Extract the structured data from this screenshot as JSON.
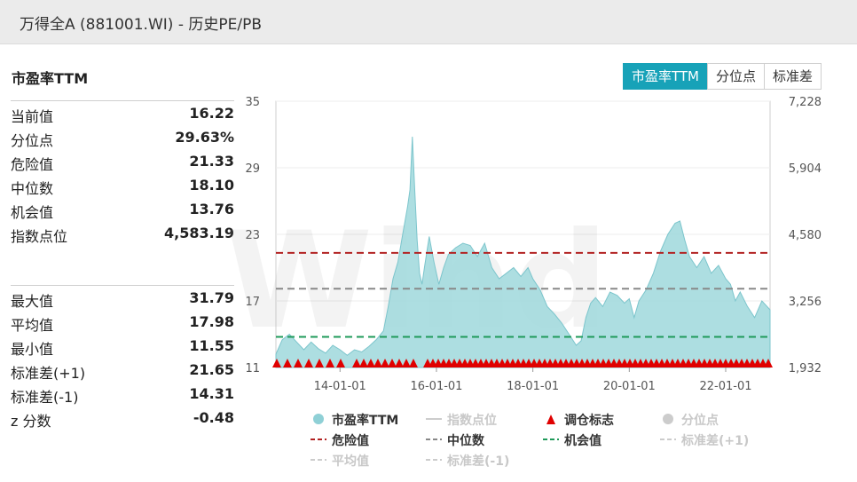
{
  "window": {
    "title": "万得全A (881001.WI) - 历史PE/PB"
  },
  "panel": {
    "title": "市盈率TTM"
  },
  "stats_top": [
    {
      "label": "当前值",
      "value": "16.22"
    },
    {
      "label": "分位点",
      "value": "29.63%"
    },
    {
      "label": "危险值",
      "value": "21.33"
    },
    {
      "label": "中位数",
      "value": "18.10"
    },
    {
      "label": "机会值",
      "value": "13.76"
    },
    {
      "label": "指数点位",
      "value": "4,583.19"
    }
  ],
  "stats_bottom": [
    {
      "label": "最大值",
      "value": "31.79"
    },
    {
      "label": "平均值",
      "value": "17.98"
    },
    {
      "label": "最小值",
      "value": "11.55"
    },
    {
      "label": "标准差(+1)",
      "value": "21.65"
    },
    {
      "label": "标准差(-1)",
      "value": "14.31"
    },
    {
      "label": "z 分数",
      "value": "-0.48"
    }
  ],
  "tabs": [
    {
      "label": "市盈率TTM",
      "active": true
    },
    {
      "label": "分位点",
      "active": false
    },
    {
      "label": "标准差",
      "active": false
    }
  ],
  "legend": [
    {
      "label": "市盈率TTM",
      "symbol": "circle",
      "color": "#8fd0d6",
      "off": false
    },
    {
      "label": "指数点位",
      "symbol": "line",
      "color": "#cccccc",
      "off": true
    },
    {
      "label": "调仓标志",
      "symbol": "triangle",
      "color": "#e00000",
      "off": false
    },
    {
      "label": "分位点",
      "symbol": "circle",
      "color": "#cccccc",
      "off": true
    },
    {
      "label": "危险值",
      "symbol": "dash",
      "color": "#b22222",
      "off": false
    },
    {
      "label": "中位数",
      "symbol": "dash",
      "color": "#888888",
      "off": false
    },
    {
      "label": "机会值",
      "symbol": "dash",
      "color": "#1f9a5a",
      "off": false
    },
    {
      "label": "标准差(+1)",
      "symbol": "dash",
      "color": "#cccccc",
      "off": true
    },
    {
      "label": "平均值",
      "symbol": "dash",
      "color": "#cccccc",
      "off": true
    },
    {
      "label": "标准差(-1)",
      "symbol": "dash",
      "color": "#cccccc",
      "off": true
    }
  ],
  "watermark": "Wind",
  "chart_data": {
    "type": "area",
    "left_ticks": [
      "35",
      "29",
      "23",
      "17",
      "11"
    ],
    "right_ticks": [
      "7,228",
      "5,904",
      "4,580",
      "3,256",
      "1,932"
    ],
    "x_ticks": [
      "14-01-01",
      "16-01-01",
      "18-01-01",
      "20-01-01",
      "22-01-01"
    ],
    "x_tick_years": [
      2014,
      2016,
      2018,
      2020,
      2022
    ],
    "xlim": [
      2012.67,
      2022.92
    ],
    "ylim": [
      11,
      35
    ],
    "reference_lines": {
      "danger": 21.33,
      "median": 18.1,
      "opportunity": 13.76
    },
    "series": [
      {
        "name": "市盈率TTM",
        "x": [
          2012.67,
          2012.8,
          2012.95,
          2013.1,
          2013.25,
          2013.4,
          2013.55,
          2013.7,
          2013.85,
          2014.0,
          2014.15,
          2014.3,
          2014.45,
          2014.6,
          2014.75,
          2014.9,
          2015.0,
          2015.1,
          2015.2,
          2015.3,
          2015.4,
          2015.45,
          2015.5,
          2015.55,
          2015.6,
          2015.65,
          2015.7,
          2015.75,
          2015.85,
          2015.95,
          2016.05,
          2016.15,
          2016.25,
          2016.4,
          2016.55,
          2016.7,
          2016.85,
          2017.0,
          2017.15,
          2017.3,
          2017.45,
          2017.6,
          2017.75,
          2017.9,
          2018.0,
          2018.15,
          2018.3,
          2018.45,
          2018.6,
          2018.75,
          2018.9,
          2019.0,
          2019.1,
          2019.2,
          2019.3,
          2019.45,
          2019.6,
          2019.75,
          2019.9,
          2020.0,
          2020.1,
          2020.2,
          2020.35,
          2020.5,
          2020.65,
          2020.8,
          2020.95,
          2021.05,
          2021.15,
          2021.25,
          2021.4,
          2021.55,
          2021.7,
          2021.85,
          2022.0,
          2022.1,
          2022.2,
          2022.3,
          2022.45,
          2022.6,
          2022.75,
          2022.92
        ],
        "values": [
          12.2,
          13.5,
          14.0,
          13.3,
          12.6,
          13.3,
          12.7,
          12.3,
          13.0,
          12.6,
          12.1,
          12.6,
          12.4,
          12.9,
          13.5,
          14.3,
          16.5,
          19.0,
          20.5,
          23.0,
          25.5,
          27.0,
          31.8,
          27.0,
          22.5,
          19.5,
          18.5,
          20.0,
          22.8,
          20.5,
          18.5,
          20.0,
          21.2,
          21.8,
          22.2,
          22.0,
          21.0,
          22.2,
          20.0,
          19.0,
          19.5,
          20.0,
          19.2,
          20.0,
          19.0,
          18.0,
          16.5,
          15.8,
          15.0,
          14.0,
          13.0,
          13.4,
          15.5,
          16.8,
          17.3,
          16.5,
          17.8,
          17.5,
          16.8,
          17.2,
          15.5,
          17.0,
          18.0,
          19.5,
          21.5,
          23.0,
          24.0,
          24.2,
          22.5,
          21.0,
          20.0,
          21.0,
          19.5,
          20.2,
          19.0,
          18.5,
          17.0,
          17.8,
          16.5,
          15.5,
          17.0,
          16.2
        ]
      }
    ]
  }
}
